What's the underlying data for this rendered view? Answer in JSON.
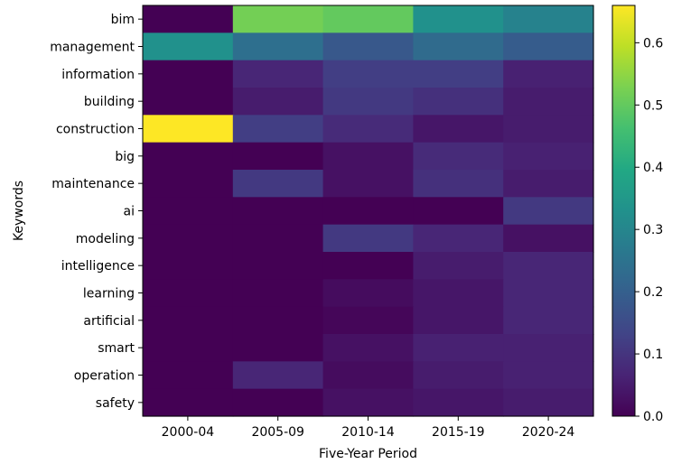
{
  "chart_data": {
    "type": "heatmap",
    "title": "",
    "xlabel": "Five-Year Period",
    "ylabel": "Keywords",
    "x_categories": [
      "2000-04",
      "2005-09",
      "2010-14",
      "2015-19",
      "2020-24"
    ],
    "y_categories": [
      "bim",
      "management",
      "information",
      "building",
      "construction",
      "big",
      "maintenance",
      "ai",
      "modeling",
      "intelligence",
      "learning",
      "artificial",
      "smart",
      "operation",
      "safety"
    ],
    "values": [
      [
        0.0,
        0.52,
        0.5,
        0.33,
        0.29
      ],
      [
        0.33,
        0.24,
        0.18,
        0.23,
        0.19
      ],
      [
        0.0,
        0.07,
        0.12,
        0.12,
        0.06
      ],
      [
        0.0,
        0.05,
        0.11,
        0.09,
        0.05
      ],
      [
        0.66,
        0.12,
        0.08,
        0.04,
        0.05
      ],
      [
        0.0,
        0.0,
        0.03,
        0.08,
        0.06
      ],
      [
        0.0,
        0.11,
        0.03,
        0.09,
        0.05
      ],
      [
        0.0,
        0.0,
        0.0,
        0.0,
        0.11
      ],
      [
        0.0,
        0.0,
        0.11,
        0.07,
        0.03
      ],
      [
        0.0,
        0.0,
        0.0,
        0.05,
        0.07
      ],
      [
        0.0,
        0.0,
        0.02,
        0.04,
        0.07
      ],
      [
        0.0,
        0.0,
        0.01,
        0.04,
        0.07
      ],
      [
        0.0,
        0.0,
        0.03,
        0.06,
        0.06
      ],
      [
        0.0,
        0.07,
        0.02,
        0.05,
        0.06
      ],
      [
        0.0,
        0.0,
        0.03,
        0.04,
        0.05
      ]
    ],
    "colormap": "viridis",
    "colorbar": {
      "range": [
        0.0,
        0.66
      ],
      "ticks": [
        0.0,
        0.1,
        0.2,
        0.3,
        0.4,
        0.5,
        0.6
      ],
      "tick_labels": [
        "0.0",
        "0.1",
        "0.2",
        "0.3",
        "0.4",
        "0.5",
        "0.6"
      ]
    },
    "grid": false
  }
}
